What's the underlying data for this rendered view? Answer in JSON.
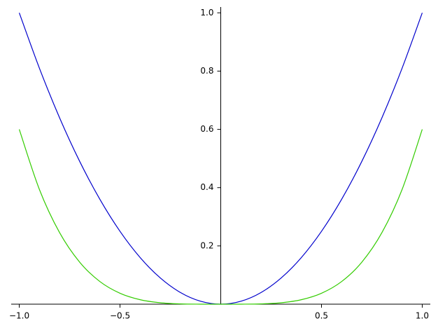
{
  "chart_data": {
    "type": "line",
    "x": [
      -1,
      -0.9,
      -0.8,
      -0.7,
      -0.6,
      -0.5,
      -0.4,
      -0.3,
      -0.2,
      -0.1,
      0,
      0.1,
      0.2,
      0.3,
      0.4,
      0.5,
      0.6,
      0.7,
      0.8,
      0.9,
      1
    ],
    "series": [
      {
        "color": "#0000cc",
        "values": [
          1,
          0.81,
          0.64,
          0.49,
          0.36,
          0.25,
          0.16,
          0.09,
          0.04,
          0.01,
          0,
          0.01,
          0.04,
          0.09,
          0.16,
          0.25,
          0.36,
          0.49,
          0.64,
          0.81,
          1
        ]
      },
      {
        "color": "#33cc00",
        "values": [
          0.6,
          0.39366,
          0.24576,
          0.14406,
          0.07776,
          0.0375,
          0.01536,
          0.00486,
          0.00096,
          6e-05,
          0,
          6e-05,
          0.00096,
          0.00486,
          0.01536,
          0.0375,
          0.07776,
          0.14406,
          0.24576,
          0.39366,
          0.6
        ]
      }
    ],
    "xlim": [
      -1.04,
      1.04
    ],
    "ylim": [
      0,
      1.02
    ],
    "xticks": [
      {
        "value": -1,
        "label": "−1.0"
      },
      {
        "value": -0.5,
        "label": "−0.5"
      },
      0.5,
      {
        "value": 1,
        "label": "1.0"
      }
    ],
    "yticks": [
      0.2,
      0.4,
      0.6,
      0.8,
      {
        "value": 1,
        "label": "1.0"
      }
    ]
  }
}
